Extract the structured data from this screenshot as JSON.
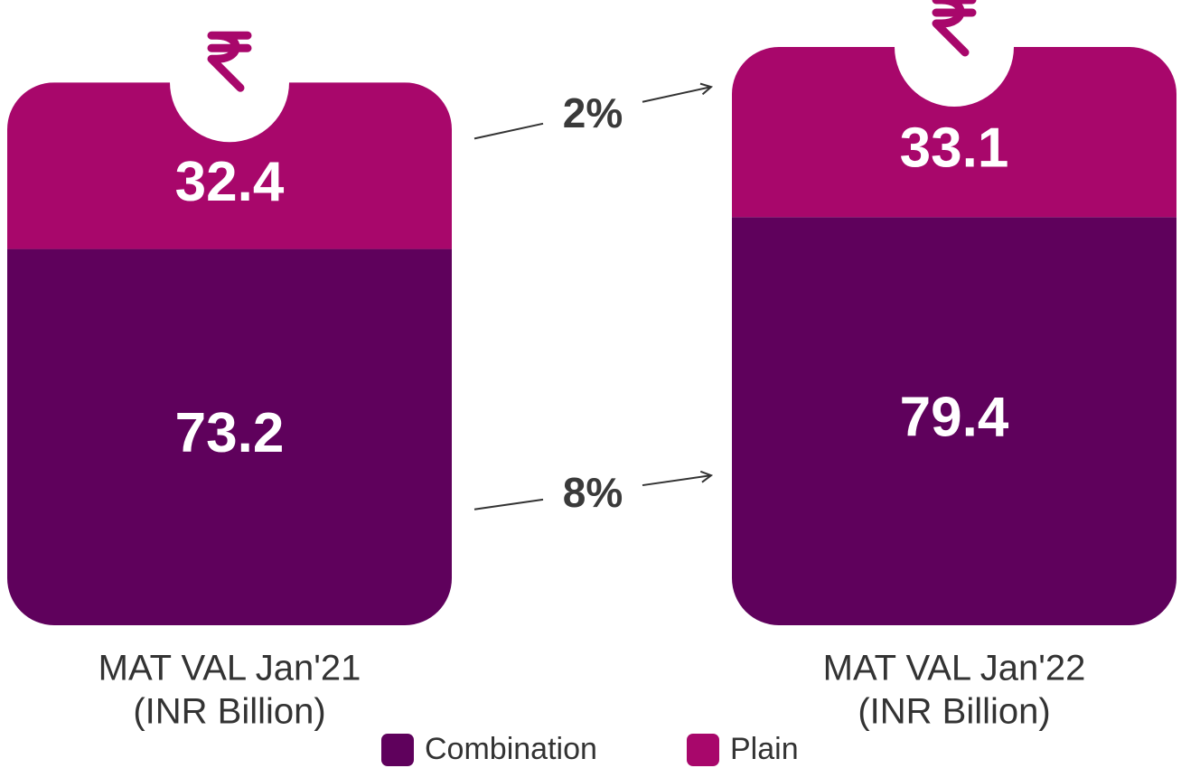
{
  "chart_data": {
    "type": "stacked_bar",
    "categories": [
      "MAT VAL Jan'21",
      "MAT VAL Jan'22"
    ],
    "unit_label": "(INR Billion)",
    "series": [
      {
        "name": "Combination",
        "color": "#5f015c",
        "values": [
          73.2,
          79.4
        ]
      },
      {
        "name": "Plain",
        "color": "#a8076b",
        "values": [
          32.4,
          33.1
        ]
      }
    ],
    "annotations": [
      "2%",
      "8%"
    ]
  }
}
